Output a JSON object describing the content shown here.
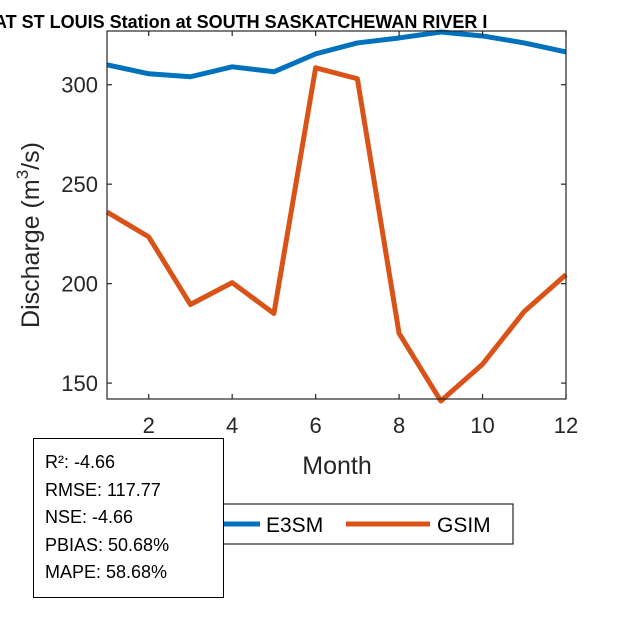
{
  "chart_data": {
    "type": "line",
    "title": "AT ST LOUIS  Station at  SOUTH SASKATCHEWAN RIVER  I",
    "xlabel": "Month",
    "ylabel_prefix": "Discharge (m",
    "ylabel_sup": "3",
    "ylabel_suffix": "/s)",
    "xlim": [
      1,
      12
    ],
    "ylim": [
      142,
      327
    ],
    "xticks": [
      2,
      4,
      6,
      8,
      10,
      12
    ],
    "yticks": [
      150,
      200,
      250,
      300
    ],
    "x": [
      1,
      2,
      3,
      4,
      5,
      6,
      7,
      8,
      9,
      10,
      11,
      12
    ],
    "series": [
      {
        "name": "E3SM",
        "color": "#0072BD",
        "values": [
          310,
          305.5,
          304,
          309,
          306.5,
          315.5,
          321,
          323.5,
          326.5,
          324.5,
          321,
          316.5
        ]
      },
      {
        "name": "GSIM",
        "color": "#D95319",
        "values": [
          236,
          223.5,
          189.5,
          200.5,
          185,
          308.5,
          303,
          175,
          141,
          159.5,
          186,
          204.5
        ]
      }
    ],
    "legend_placement": "bottom",
    "grid": false
  },
  "stats": {
    "r2": "R²: -4.66",
    "rmse": "RMSE: 117.77",
    "nse": "NSE: -4.66",
    "pbias": "PBIAS: 50.68%",
    "mape": "MAPE: 58.68%"
  }
}
